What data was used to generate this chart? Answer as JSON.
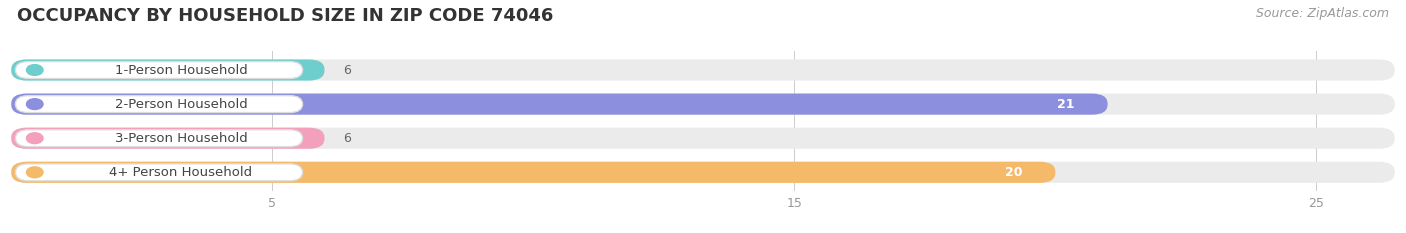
{
  "title": "OCCUPANCY BY HOUSEHOLD SIZE IN ZIP CODE 74046",
  "source": "Source: ZipAtlas.com",
  "categories": [
    "1-Person Household",
    "2-Person Household",
    "3-Person Household",
    "4+ Person Household"
  ],
  "values": [
    6,
    21,
    6,
    20
  ],
  "bar_colors": [
    "#6ecece",
    "#8b8fdd",
    "#f2a0bc",
    "#f5b96a"
  ],
  "xlim": [
    0,
    26.5
  ],
  "xticks": [
    5,
    15,
    25
  ],
  "bar_height": 0.62,
  "background_color": "#ffffff",
  "bar_bg_color": "#ebebeb",
  "title_fontsize": 13,
  "source_fontsize": 9,
  "label_fontsize": 9.5,
  "value_fontsize": 9
}
